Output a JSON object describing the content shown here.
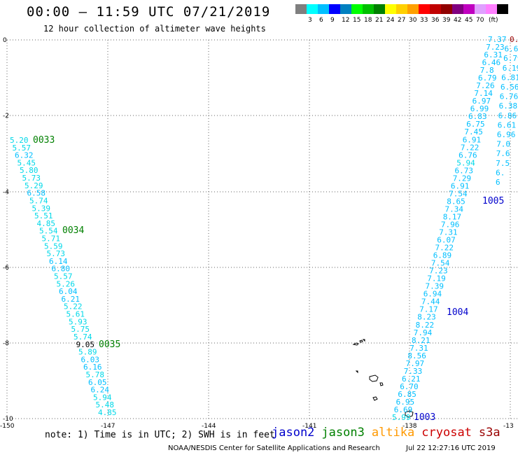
{
  "header": {
    "title": "00:00 – 11:59 UTC 07/21/2019",
    "subtitle": "12 hour collection of altimeter wave heights"
  },
  "colorbar": {
    "colors": [
      "#7f7f7f",
      "#00ffff",
      "#00bfff",
      "#0000ff",
      "#0080c0",
      "#00ff00",
      "#00c000",
      "#008000",
      "#ffff00",
      "#ffd000",
      "#ffa000",
      "#ff0000",
      "#c00000",
      "#900000",
      "#800080",
      "#c000c0",
      "#e0a0ff",
      "#ff80ff",
      "#000000"
    ],
    "labels": [
      "3",
      "6",
      "9",
      "12",
      "15",
      "18",
      "21",
      "24",
      "27",
      "30",
      "33",
      "36",
      "39",
      "42",
      "45",
      "70"
    ],
    "unit": "(ft)"
  },
  "axes": {
    "x_ticks": [
      "-150",
      "-147",
      "-144",
      "-141",
      "-138",
      "-13"
    ],
    "y_ticks": [
      "0",
      "-2",
      "-4",
      "-6",
      "-8",
      "-10"
    ]
  },
  "tracks": {
    "left_values": [
      "5.20",
      "5.57",
      "6.32",
      "5.45",
      "5.80",
      "5.73",
      "5.29",
      "6.58",
      "5.74",
      "5.39",
      "5.51",
      "4.85",
      "5.54",
      "5.71",
      "5.59",
      "5.73",
      "6.14",
      "6.80",
      "5.57",
      "5.26",
      "6.04",
      "6.21",
      "5.22",
      "5.61",
      "5.93",
      "5.75",
      "5.74",
      "9.05",
      "5.89",
      "6.03",
      "6.16",
      "5.78",
      "6.05",
      "6.24",
      "5.94",
      "5.48",
      "4.85"
    ],
    "right_values": [
      "7.37",
      "7.23",
      "6.31",
      "6.46",
      "7.8",
      "6.79",
      "7.26",
      "7.14",
      "6.97",
      "6.99",
      "6.83",
      "6.75",
      "7.45",
      "6.91",
      "7.22",
      "6.76",
      "5.94",
      "6.73",
      "7.29",
      "6.91",
      "7.54",
      "8.65",
      "7.34",
      "8.17",
      "7.96",
      "7.31",
      "6.07",
      "7.22",
      "6.89",
      "7.54",
      "7.23",
      "7.19",
      "7.39",
      "6.94",
      "7.44",
      "7.17",
      "8.23",
      "8.22",
      "7.94",
      "8.21",
      "7.31",
      "8.56",
      "7.97",
      "7.33",
      "6.21",
      "6.70",
      "6.85",
      "6.95",
      "6.69",
      "5.99"
    ],
    "edge_values": [
      "0.",
      "6.6",
      "6.79",
      "6.19",
      "6.81",
      "6.56",
      "6.76",
      "6.38",
      "6.86",
      "6.61",
      "6.96",
      "7.0",
      "7.6",
      "7.5",
      "6.",
      "6"
    ],
    "rev_labels": {
      "r0033": "0033",
      "r0034": "0034",
      "r0035": "0035",
      "r1005": "1005",
      "r1004": "1004",
      "r1003": "1003"
    }
  },
  "footer": {
    "note": "note: 1) Time is in UTC; 2) SWH is in feet",
    "satellites": [
      {
        "name": "jason2",
        "color": "#0000cc"
      },
      {
        "name": "jason3",
        "color": "#008000"
      },
      {
        "name": "altika",
        "color": "#ff9900"
      },
      {
        "name": "cryosat",
        "color": "#cc0000"
      },
      {
        "name": "s3a",
        "color": "#990000"
      }
    ],
    "credit": "NOAA/NESDIS Center for Satellite Applications and Research",
    "timestamp": "Jul 22 12:27:16 UTC 2019"
  }
}
